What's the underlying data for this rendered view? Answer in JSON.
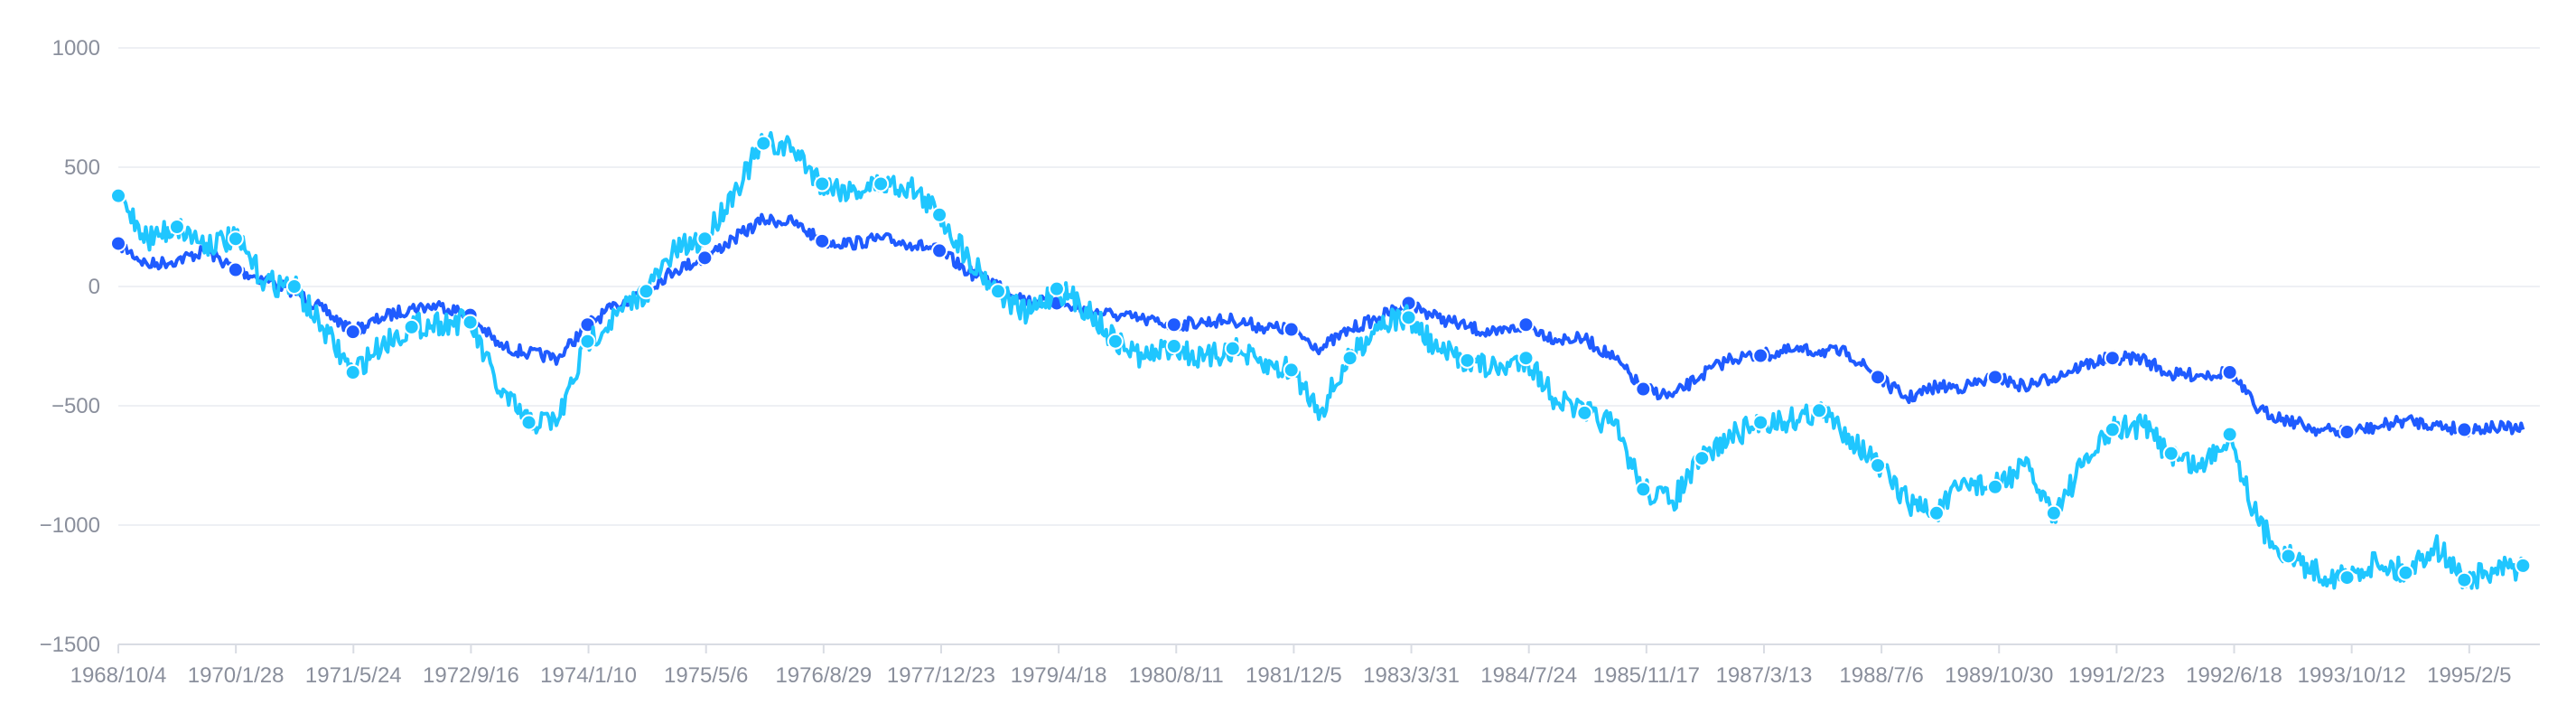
{
  "chart_data": {
    "type": "line",
    "title": "",
    "xlabel": "",
    "ylabel": "",
    "x_start": "1968/10/4",
    "x_step_days": 120,
    "x_range_days": [
      0,
      9909
    ],
    "ylim": [
      -1500,
      1000
    ],
    "y_ticks": [
      "1000",
      "500",
      "0",
      "-500",
      "-1000",
      "-1500"
    ],
    "y_tick_values": [
      1000,
      500,
      0,
      -500,
      -1000,
      -1500
    ],
    "x_tick_step_days": 481,
    "x_ticks": [
      "1968/10/4",
      "1970/1/28",
      "1971/5/24",
      "1972/9/16",
      "1974/1/10",
      "1975/5/6",
      "1976/8/29",
      "1977/12/23",
      "1979/4/18",
      "1980/8/11",
      "1981/12/5",
      "1983/3/31",
      "1984/7/24",
      "1985/11/17",
      "1987/3/13",
      "1988/7/6",
      "1989/10/30",
      "1991/2/23",
      "1992/6/18",
      "1993/10/12",
      "1995/2/5"
    ],
    "grid": true,
    "legend": "none",
    "series": [
      {
        "color": "#1f5bff",
        "values": [
          180,
          90,
          110,
          150,
          70,
          30,
          -20,
          -100,
          -190,
          -130,
          -90,
          -80,
          -120,
          -250,
          -280,
          -300,
          -160,
          -80,
          -10,
          70,
          120,
          200,
          280,
          270,
          190,
          180,
          200,
          180,
          150,
          60,
          10,
          -60,
          -70,
          -100,
          -120,
          -140,
          -160,
          -150,
          -140,
          -170,
          -180,
          -260,
          -180,
          -130,
          -70,
          -130,
          -170,
          -200,
          -160,
          -220,
          -220,
          -300,
          -430,
          -460,
          -370,
          -300,
          -290,
          -270,
          -270,
          -280,
          -380,
          -470,
          -420,
          -420,
          -380,
          -420,
          -380,
          -330,
          -300,
          -300,
          -370,
          -370,
          -360,
          -520,
          -560,
          -600,
          -610,
          -590,
          -560,
          -580,
          -600,
          -590,
          -600
        ]
      },
      {
        "color": "#1fc6ff",
        "values": [
          380,
          200,
          250,
          180,
          200,
          20,
          0,
          -180,
          -360,
          -240,
          -170,
          -150,
          -150,
          -440,
          -570,
          -560,
          -230,
          -120,
          -20,
          150,
          200,
          400,
          600,
          580,
          430,
          400,
          430,
          420,
          300,
          120,
          -20,
          -120,
          -10,
          -90,
          -230,
          -300,
          -250,
          -310,
          -260,
          -330,
          -350,
          -520,
          -300,
          -150,
          -130,
          -270,
          -310,
          -350,
          -300,
          -470,
          -530,
          -580,
          -850,
          -900,
          -720,
          -630,
          -570,
          -560,
          -520,
          -620,
          -750,
          -900,
          -950,
          -820,
          -840,
          -750,
          -950,
          -750,
          -600,
          -580,
          -700,
          -760,
          -620,
          -1000,
          -1130,
          -1200,
          -1220,
          -1150,
          -1200,
          -1080,
          -1230,
          -1200,
          -1170
        ]
      }
    ]
  }
}
